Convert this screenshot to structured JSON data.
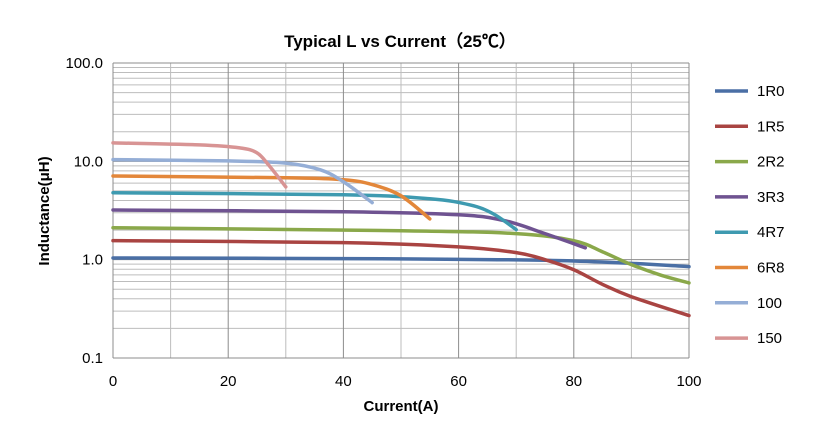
{
  "chart_data": {
    "type": "line",
    "title": "Typical L vs Current（25℃）",
    "xlabel": "Current(A)",
    "ylabel": "Inductance(μH)",
    "xlim": [
      0,
      100
    ],
    "ylim": [
      0.1,
      100
    ],
    "yscale": "log",
    "grid": true,
    "legend_position": "right",
    "x_ticks": [
      0,
      20,
      40,
      60,
      80,
      100
    ],
    "x_tick_labels": [
      "0",
      "20",
      "40",
      "60",
      "80",
      "100"
    ],
    "y_ticks": [
      0.1,
      1,
      10,
      100
    ],
    "y_tick_labels": [
      "0.1",
      "1.0",
      "10.0",
      "100.0"
    ],
    "series": [
      {
        "name": "1R0",
        "color": "#4a6fa5",
        "x": [
          0,
          50,
          80,
          100
        ],
        "y": [
          1.04,
          1.02,
          0.97,
          0.85
        ]
      },
      {
        "name": "1R5",
        "color": "#a94442",
        "x": [
          0,
          40,
          60,
          70,
          75,
          80,
          85,
          90,
          100
        ],
        "y": [
          1.56,
          1.49,
          1.35,
          1.18,
          1.0,
          0.79,
          0.56,
          0.42,
          0.27
        ]
      },
      {
        "name": "2R2",
        "color": "#8aa84a",
        "x": [
          0,
          50,
          70,
          80,
          85,
          90,
          95,
          100
        ],
        "y": [
          2.11,
          1.97,
          1.84,
          1.56,
          1.2,
          0.89,
          0.7,
          0.58
        ]
      },
      {
        "name": "3R3",
        "color": "#6f5391",
        "x": [
          0,
          40,
          60,
          68,
          75,
          82
        ],
        "y": [
          3.2,
          3.07,
          2.86,
          2.49,
          1.84,
          1.32
        ]
      },
      {
        "name": "4R7",
        "color": "#3e9ab0",
        "x": [
          0,
          40,
          55,
          62,
          66,
          70
        ],
        "y": [
          4.79,
          4.57,
          4.16,
          3.6,
          2.93,
          2.02
        ]
      },
      {
        "name": "6R8",
        "color": "#e3873a",
        "x": [
          0,
          30,
          40,
          45,
          50,
          55
        ],
        "y": [
          7.1,
          6.8,
          6.5,
          5.8,
          4.46,
          2.6
        ]
      },
      {
        "name": "100",
        "color": "#95aed6",
        "x": [
          0,
          20,
          30,
          36,
          40,
          45
        ],
        "y": [
          10.4,
          10.1,
          9.6,
          8.2,
          6.2,
          3.8
        ]
      },
      {
        "name": "150",
        "color": "#d89494",
        "x": [
          0,
          15,
          22,
          25,
          27,
          30
        ],
        "y": [
          15.4,
          14.7,
          13.7,
          12.2,
          9.2,
          5.5
        ]
      }
    ]
  }
}
